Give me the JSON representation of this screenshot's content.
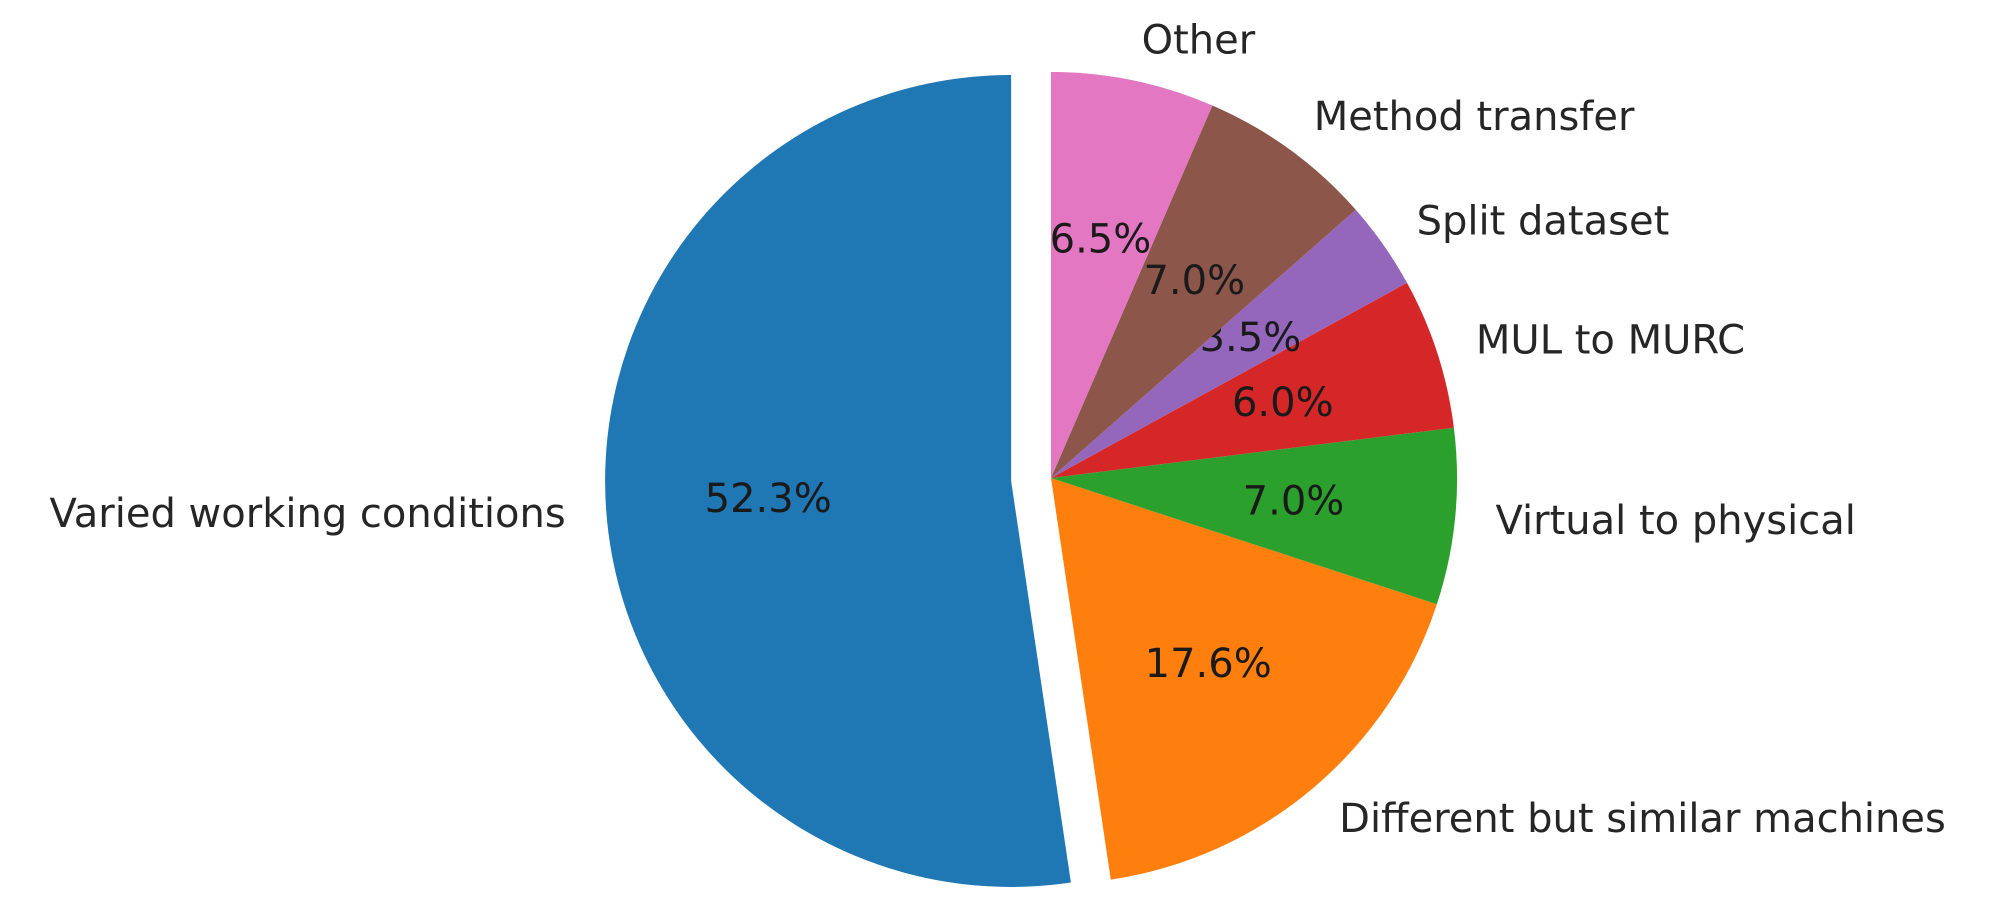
{
  "chart_data": {
    "type": "pie",
    "title": "",
    "slices": [
      {
        "label": "Varied working conditions",
        "value": 52.3,
        "pct_label": "52.3%",
        "color": "#1f77b4",
        "exploded": true
      },
      {
        "label": "Different but similar machines",
        "value": 17.6,
        "pct_label": "17.6%",
        "color": "#ff7f0e",
        "exploded": false
      },
      {
        "label": "Virtual to physical",
        "value": 7.0,
        "pct_label": "7.0%",
        "color": "#2ca02c",
        "exploded": false
      },
      {
        "label": "MUL to MURC",
        "value": 6.0,
        "pct_label": "6.0%",
        "color": "#d62728",
        "exploded": false
      },
      {
        "label": "Split dataset",
        "value": 3.5,
        "pct_label": "3.5%",
        "color": "#9467bd",
        "exploded": false
      },
      {
        "label": "Method transfer",
        "value": 7.0,
        "pct_label": "7.0%",
        "color": "#8c564b",
        "exploded": false
      },
      {
        "label": "Other",
        "value": 6.5,
        "pct_label": "6.5%",
        "color": "#e377c2",
        "exploded": false
      }
    ],
    "start_angle_deg": 90,
    "direction": "counterclockwise",
    "legend": "none"
  }
}
